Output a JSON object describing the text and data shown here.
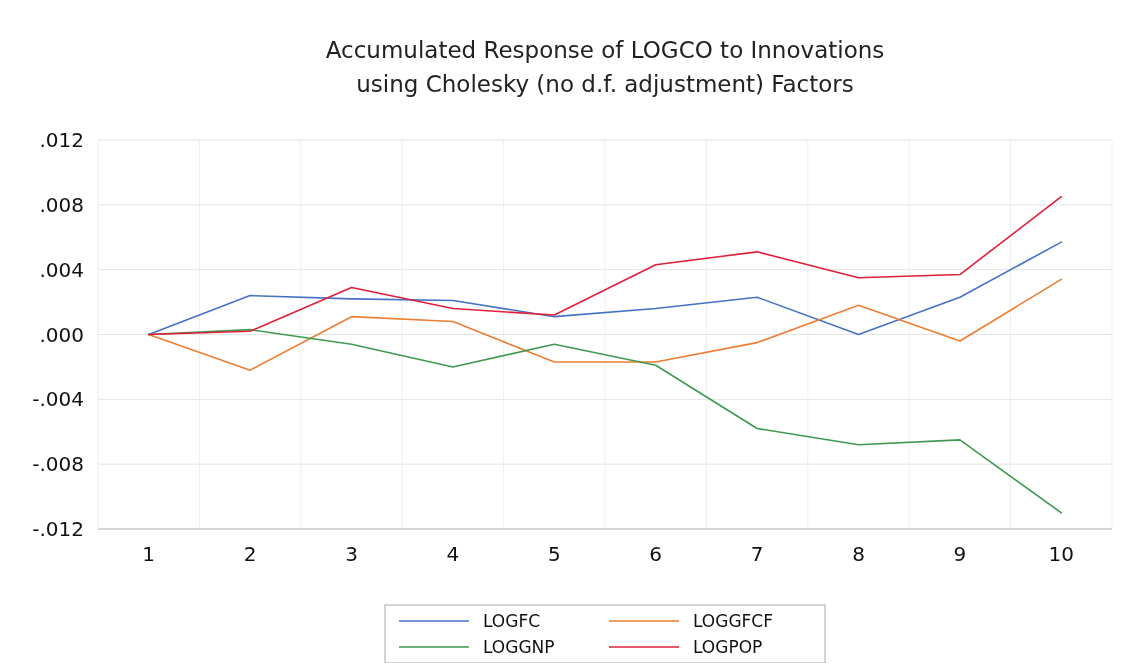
{
  "chart_data": {
    "type": "line",
    "title": "Accumulated Response of LOGCO to Innovations\nusing Cholesky (no d.f. adjustment) Factors",
    "categories": [
      "1",
      "2",
      "3",
      "4",
      "5",
      "6",
      "7",
      "8",
      "9",
      "10"
    ],
    "series": [
      {
        "name": "LOGFC",
        "color": "#4472c4",
        "values": [
          0,
          0.0024,
          0.0022,
          0.0021,
          0.0011,
          0.0016,
          0.0023,
          0,
          0.0023,
          0.0057
        ]
      },
      {
        "name": "LOGGFCF",
        "color": "#ed7d31",
        "values": [
          0,
          -0.0022,
          0.0011,
          0.0008,
          -0.0017,
          -0.0017,
          -0.0005,
          0.0018,
          -0.0004,
          0.0034
        ]
      },
      {
        "name": "LOGGNP",
        "color": "#3f9a4f",
        "values": [
          0,
          0.0003,
          -0.0006,
          -0.002,
          -0.0006,
          -0.0019,
          -0.0058,
          -0.0068,
          -0.0065,
          -0.011
        ]
      },
      {
        "name": "LOGPOP",
        "color": "#e0203a",
        "values": [
          0,
          0.0002,
          0.0029,
          0.0016,
          0.0012,
          0.0043,
          0.0051,
          0.0035,
          0.0037,
          0.0085
        ]
      }
    ],
    "ylim": [
      -0.012,
      0.012
    ],
    "yticks": [
      {
        "value": -0.012,
        "label": "-.012"
      },
      {
        "value": -0.008,
        "label": "-.008"
      },
      {
        "value": -0.004,
        "label": "-.004"
      },
      {
        "value": 0,
        "label": ".000"
      },
      {
        "value": 0.004,
        "label": ".004"
      },
      {
        "value": 0.008,
        "label": ".008"
      },
      {
        "value": 0.012,
        "label": ".012"
      }
    ],
    "grid": true,
    "legend": "bottom",
    "marker": "none",
    "line_style": "solid"
  }
}
